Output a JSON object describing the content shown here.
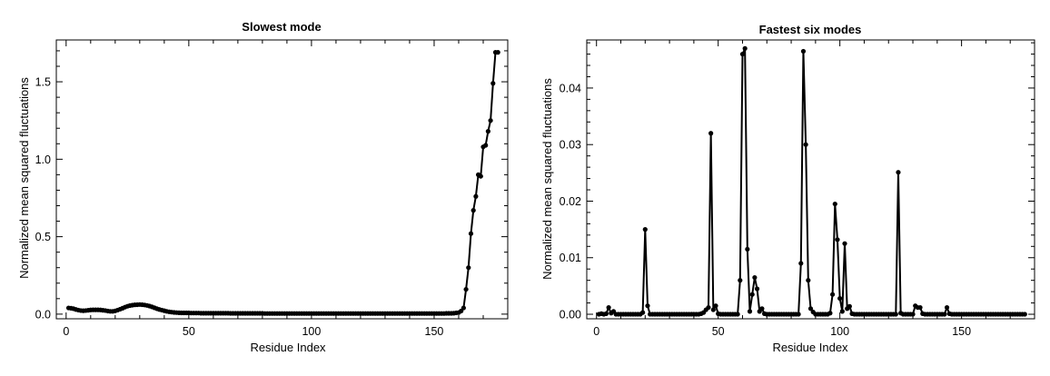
{
  "chart_data": [
    {
      "type": "line",
      "title": "Slowest mode",
      "xlabel": "Residue Index",
      "ylabel": "Normalized mean squared fluctuations",
      "xlim": [
        -4,
        180
      ],
      "ylim": [
        -0.03,
        1.77
      ],
      "xticks": [
        0,
        50,
        100,
        150
      ],
      "yticks": [
        0.0,
        0.5,
        1.0,
        1.5
      ],
      "xtick_labels": [
        "0",
        "50",
        "100",
        "150"
      ],
      "ytick_labels": [
        "0.0",
        "0.5",
        "1.0",
        "1.5"
      ],
      "grid": false,
      "series": [
        {
          "color": "#000000",
          "marker": "circle",
          "x": [
            1,
            2,
            3,
            4,
            5,
            6,
            7,
            8,
            9,
            10,
            11,
            12,
            13,
            14,
            15,
            16,
            17,
            18,
            19,
            20,
            21,
            22,
            23,
            24,
            25,
            26,
            27,
            28,
            29,
            30,
            31,
            32,
            33,
            34,
            35,
            36,
            37,
            38,
            39,
            40,
            41,
            42,
            43,
            44,
            45,
            46,
            47,
            48,
            49,
            50,
            51,
            52,
            53,
            54,
            55,
            56,
            57,
            58,
            59,
            60,
            61,
            62,
            63,
            64,
            65,
            66,
            67,
            68,
            69,
            70,
            71,
            72,
            73,
            74,
            75,
            76,
            77,
            78,
            79,
            80,
            81,
            82,
            83,
            84,
            85,
            86,
            87,
            88,
            89,
            90,
            91,
            92,
            93,
            94,
            95,
            96,
            97,
            98,
            99,
            100,
            101,
            102,
            103,
            104,
            105,
            106,
            107,
            108,
            109,
            110,
            111,
            112,
            113,
            114,
            115,
            116,
            117,
            118,
            119,
            120,
            121,
            122,
            123,
            124,
            125,
            126,
            127,
            128,
            129,
            130,
            131,
            132,
            133,
            134,
            135,
            136,
            137,
            138,
            139,
            140,
            141,
            142,
            143,
            144,
            145,
            146,
            147,
            148,
            149,
            150,
            151,
            152,
            153,
            154,
            155,
            156,
            157,
            158,
            159,
            160,
            161,
            162,
            163,
            164,
            165,
            166,
            167,
            168,
            169,
            170,
            171,
            172,
            173,
            174,
            175,
            176
          ],
          "y": [
            0.04,
            0.038,
            0.035,
            0.03,
            0.026,
            0.023,
            0.022,
            0.023,
            0.025,
            0.027,
            0.028,
            0.028,
            0.028,
            0.027,
            0.025,
            0.023,
            0.02,
            0.018,
            0.018,
            0.021,
            0.026,
            0.032,
            0.038,
            0.045,
            0.051,
            0.055,
            0.058,
            0.06,
            0.061,
            0.062,
            0.061,
            0.059,
            0.056,
            0.052,
            0.047,
            0.041,
            0.035,
            0.03,
            0.026,
            0.022,
            0.018,
            0.015,
            0.013,
            0.011,
            0.01,
            0.009,
            0.008,
            0.008,
            0.008,
            0.008,
            0.007,
            0.007,
            0.007,
            0.007,
            0.006,
            0.006,
            0.006,
            0.006,
            0.006,
            0.006,
            0.006,
            0.006,
            0.006,
            0.006,
            0.006,
            0.006,
            0.005,
            0.005,
            0.005,
            0.005,
            0.005,
            0.005,
            0.005,
            0.005,
            0.005,
            0.005,
            0.005,
            0.005,
            0.005,
            0.005,
            0.004,
            0.004,
            0.004,
            0.004,
            0.004,
            0.004,
            0.004,
            0.004,
            0.004,
            0.004,
            0.004,
            0.004,
            0.004,
            0.004,
            0.004,
            0.004,
            0.004,
            0.004,
            0.004,
            0.004,
            0.004,
            0.004,
            0.004,
            0.004,
            0.004,
            0.004,
            0.004,
            0.004,
            0.004,
            0.004,
            0.004,
            0.004,
            0.004,
            0.004,
            0.004,
            0.004,
            0.004,
            0.004,
            0.004,
            0.004,
            0.004,
            0.004,
            0.004,
            0.004,
            0.004,
            0.004,
            0.004,
            0.004,
            0.004,
            0.004,
            0.004,
            0.004,
            0.004,
            0.004,
            0.004,
            0.004,
            0.004,
            0.004,
            0.004,
            0.004,
            0.004,
            0.004,
            0.004,
            0.004,
            0.004,
            0.004,
            0.004,
            0.004,
            0.004,
            0.004,
            0.004,
            0.004,
            0.004,
            0.004,
            0.005,
            0.005,
            0.005,
            0.006,
            0.008,
            0.01,
            0.02,
            0.04,
            0.16,
            0.3,
            0.52,
            0.67,
            0.76,
            0.9,
            0.89,
            1.08,
            1.09,
            1.18,
            1.25,
            1.49,
            1.69,
            1.69
          ]
        }
      ]
    },
    {
      "type": "line",
      "title": "Fastest six modes",
      "xlabel": "Residue Index",
      "ylabel": "Normalized mean squared fluctuations",
      "xlim": [
        -4,
        180
      ],
      "ylim": [
        -0.0008,
        0.0485
      ],
      "xticks": [
        0,
        50,
        100,
        150
      ],
      "yticks": [
        0.0,
        0.01,
        0.02,
        0.03,
        0.04
      ],
      "xtick_labels": [
        "0",
        "50",
        "100",
        "150"
      ],
      "ytick_labels": [
        "0.00",
        "0.01",
        "0.02",
        "0.03",
        "0.04"
      ],
      "grid": false,
      "series": [
        {
          "color": "#000000",
          "marker": "circle",
          "x": [
            1,
            2,
            3,
            4,
            5,
            6,
            7,
            8,
            9,
            10,
            11,
            12,
            13,
            14,
            15,
            16,
            17,
            18,
            19,
            20,
            21,
            22,
            23,
            24,
            25,
            26,
            27,
            28,
            29,
            30,
            31,
            32,
            33,
            34,
            35,
            36,
            37,
            38,
            39,
            40,
            41,
            42,
            43,
            44,
            45,
            46,
            47,
            48,
            49,
            50,
            51,
            52,
            53,
            54,
            55,
            56,
            57,
            58,
            59,
            60,
            61,
            62,
            63,
            64,
            65,
            66,
            67,
            68,
            69,
            70,
            71,
            72,
            73,
            74,
            75,
            76,
            77,
            78,
            79,
            80,
            81,
            82,
            83,
            84,
            85,
            86,
            87,
            88,
            89,
            90,
            91,
            92,
            93,
            94,
            95,
            96,
            97,
            98,
            99,
            100,
            101,
            102,
            103,
            104,
            105,
            106,
            107,
            108,
            109,
            110,
            111,
            112,
            113,
            114,
            115,
            116,
            117,
            118,
            119,
            120,
            121,
            122,
            123,
            124,
            125,
            126,
            127,
            128,
            129,
            130,
            131,
            132,
            133,
            134,
            135,
            136,
            137,
            138,
            139,
            140,
            141,
            142,
            143,
            144,
            145,
            146,
            147,
            148,
            149,
            150,
            151,
            152,
            153,
            154,
            155,
            156,
            157,
            158,
            159,
            160,
            161,
            162,
            163,
            164,
            165,
            166,
            167,
            168,
            169,
            170,
            171,
            172,
            173,
            174,
            175,
            176
          ],
          "y": [
            0.0,
            0.0001,
            0.0,
            0.0001,
            0.0012,
            0.0002,
            0.0005,
            0.0,
            0.0,
            0.0,
            0.0,
            0.0,
            0.0,
            0.0,
            0.0,
            0.0,
            0.0,
            0.0,
            0.0003,
            0.015,
            0.0015,
            0.0,
            0.0,
            0.0,
            0.0,
            0.0,
            0.0,
            0.0,
            0.0,
            0.0,
            0.0,
            0.0,
            0.0,
            0.0,
            0.0,
            0.0,
            0.0,
            0.0,
            0.0,
            0.0,
            0.0,
            0.0,
            0.0001,
            0.0003,
            0.0008,
            0.0012,
            0.032,
            0.0008,
            0.0015,
            0.0001,
            0.0,
            0.0,
            0.0,
            0.0,
            0.0,
            0.0,
            0.0,
            0.0,
            0.006,
            0.046,
            0.047,
            0.0115,
            0.0005,
            0.0035,
            0.0065,
            0.0045,
            0.0005,
            0.001,
            0.0001,
            0.0,
            0.0,
            0.0,
            0.0,
            0.0,
            0.0,
            0.0,
            0.0,
            0.0,
            0.0,
            0.0,
            0.0,
            0.0,
            0.0,
            0.009,
            0.0465,
            0.03,
            0.006,
            0.001,
            0.0004,
            0.0,
            0.0,
            0.0,
            0.0,
            0.0,
            0.0,
            0.0002,
            0.0035,
            0.0195,
            0.0132,
            0.0028,
            0.0005,
            0.0125,
            0.001,
            0.0014,
            0.0001,
            0.0,
            0.0,
            0.0,
            0.0,
            0.0,
            0.0,
            0.0,
            0.0,
            0.0,
            0.0,
            0.0,
            0.0,
            0.0,
            0.0,
            0.0,
            0.0,
            0.0,
            0.0,
            0.0251,
            0.0002,
            0.0,
            0.0,
            0.0,
            0.0,
            0.0,
            0.0015,
            0.0012,
            0.0012,
            0.0001,
            0.0,
            0.0,
            0.0,
            0.0,
            0.0,
            0.0,
            0.0,
            0.0,
            0.0,
            0.0012,
            0.0001,
            0.0,
            0.0,
            0.0,
            0.0,
            0.0,
            0.0,
            0.0,
            0.0,
            0.0,
            0.0,
            0.0,
            0.0,
            0.0,
            0.0,
            0.0,
            0.0,
            0.0,
            0.0,
            0.0,
            0.0,
            0.0,
            0.0,
            0.0,
            0.0,
            0.0,
            0.0,
            0.0,
            0.0,
            0.0,
            0.0,
            0.0
          ]
        }
      ]
    }
  ]
}
